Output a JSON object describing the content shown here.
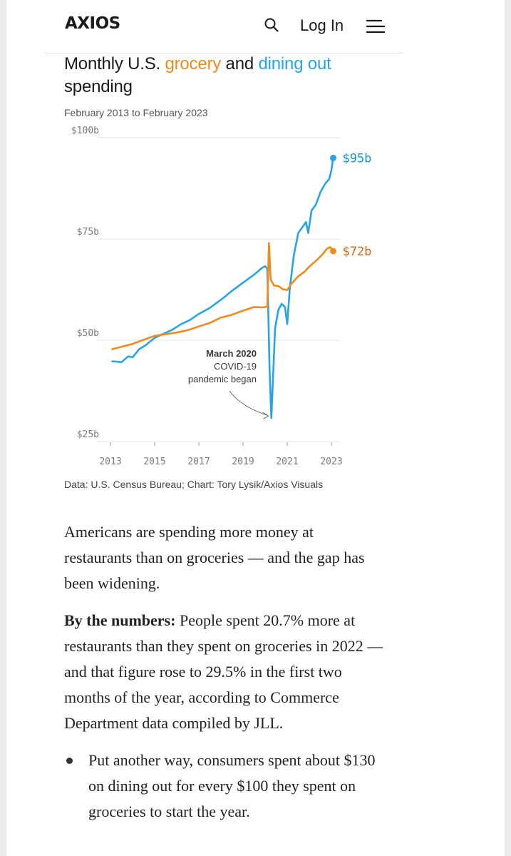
{
  "header": {
    "logo": "AXIOS",
    "login_label": "Log In",
    "icons": [
      "search-icon",
      "menu-icon"
    ]
  },
  "title": {
    "prefix": "Monthly U.S. ",
    "grocery": "grocery",
    "middle": " and ",
    "dining": "dining out",
    "suffix": "spending"
  },
  "subtitle": "February 2013 to February 2023",
  "source": "Data: U.S. Census Bureau; Chart: Tory Lysik/Axios Visuals",
  "colors": {
    "grocery": "#f08a1c",
    "dining": "#27a3e8",
    "dining_label": "#1591d6",
    "grocery_label": "#d9660c"
  },
  "chart_data": {
    "type": "line",
    "title": "Monthly U.S. grocery and dining out spending",
    "subtitle": "February 2013 to February 2023",
    "xlim": [
      2013,
      2023.2
    ],
    "ylim": [
      25,
      100
    ],
    "x_ticks": [
      2013,
      2015,
      2017,
      2019,
      2021,
      2023
    ],
    "x_tick_labels": [
      "2013",
      "2015",
      "2017",
      "2019",
      "2021",
      "2023"
    ],
    "y_ticks": [
      25,
      50,
      75,
      100
    ],
    "y_tick_labels": [
      "$25b",
      "$50b",
      "$75b",
      "$100b"
    ],
    "grid": "horizontal",
    "series": [
      {
        "key": "dining",
        "end_label": "$95b",
        "points": [
          [
            2013.08,
            44.8
          ],
          [
            2013.5,
            44.6
          ],
          [
            2013.8,
            46.0
          ],
          [
            2014.0,
            45.8
          ],
          [
            2014.3,
            47.8
          ],
          [
            2014.6,
            48.8
          ],
          [
            2015.0,
            50.6
          ],
          [
            2015.4,
            51.6
          ],
          [
            2015.8,
            52.6
          ],
          [
            2016.2,
            54.0
          ],
          [
            2016.6,
            55.0
          ],
          [
            2017.0,
            56.5
          ],
          [
            2017.5,
            58.0
          ],
          [
            2018.0,
            60.0
          ],
          [
            2018.5,
            62.2
          ],
          [
            2019.0,
            64.2
          ],
          [
            2019.5,
            66.2
          ],
          [
            2019.85,
            67.8
          ],
          [
            2020.0,
            68.3
          ],
          [
            2020.1,
            67.6
          ],
          [
            2020.2,
            43.0
          ],
          [
            2020.28,
            30.8
          ],
          [
            2020.45,
            53.0
          ],
          [
            2020.6,
            57.5
          ],
          [
            2020.75,
            59.0
          ],
          [
            2020.9,
            58.2
          ],
          [
            2021.0,
            54.0
          ],
          [
            2021.12,
            63.0
          ],
          [
            2021.3,
            71.0
          ],
          [
            2021.5,
            76.5
          ],
          [
            2021.7,
            78.0
          ],
          [
            2021.85,
            79.2
          ],
          [
            2021.95,
            76.5
          ],
          [
            2022.1,
            82.0
          ],
          [
            2022.3,
            83.5
          ],
          [
            2022.5,
            86.5
          ],
          [
            2022.7,
            88.5
          ],
          [
            2022.9,
            89.8
          ],
          [
            2023.0,
            92.0
          ],
          [
            2023.08,
            95.0
          ]
        ]
      },
      {
        "key": "grocery",
        "end_label": "$72b",
        "points": [
          [
            2013.08,
            47.8
          ],
          [
            2013.5,
            48.4
          ],
          [
            2014.0,
            49.1
          ],
          [
            2014.5,
            50.1
          ],
          [
            2015.0,
            51.1
          ],
          [
            2015.5,
            51.5
          ],
          [
            2016.0,
            51.9
          ],
          [
            2016.5,
            52.5
          ],
          [
            2017.0,
            53.4
          ],
          [
            2017.5,
            54.3
          ],
          [
            2018.0,
            55.6
          ],
          [
            2018.5,
            56.3
          ],
          [
            2019.0,
            57.3
          ],
          [
            2019.5,
            58.2
          ],
          [
            2019.9,
            58.1
          ],
          [
            2020.1,
            58.3
          ],
          [
            2020.17,
            74.0
          ],
          [
            2020.25,
            65.0
          ],
          [
            2020.4,
            63.5
          ],
          [
            2020.6,
            63.4
          ],
          [
            2020.8,
            62.6
          ],
          [
            2021.0,
            62.4
          ],
          [
            2021.2,
            64.0
          ],
          [
            2021.5,
            65.8
          ],
          [
            2021.8,
            67.0
          ],
          [
            2022.0,
            68.2
          ],
          [
            2022.3,
            69.6
          ],
          [
            2022.6,
            71.2
          ],
          [
            2022.8,
            72.6
          ],
          [
            2022.95,
            73.0
          ],
          [
            2023.08,
            72.0
          ]
        ]
      }
    ],
    "annotation": {
      "title": "March 2020",
      "lines": [
        "COVID-19",
        "pandemic began"
      ],
      "x": 2020.28,
      "y": 30.8
    }
  },
  "article": {
    "p1": "Americans are spending more money at restaurants than on groceries — and the gap has been widening.",
    "p2_lead": "By the numbers:",
    "p2_text": " People spent 20.7% more at restaurants than they spent on groceries in 2022 — and that figure rose to 29.5% in the first two months of the year, according to Commerce Department data compiled by JLL.",
    "bullet1": "Put another way, consumers spent about $130 on dining out for every $100 they spent on groceries to start the year."
  }
}
